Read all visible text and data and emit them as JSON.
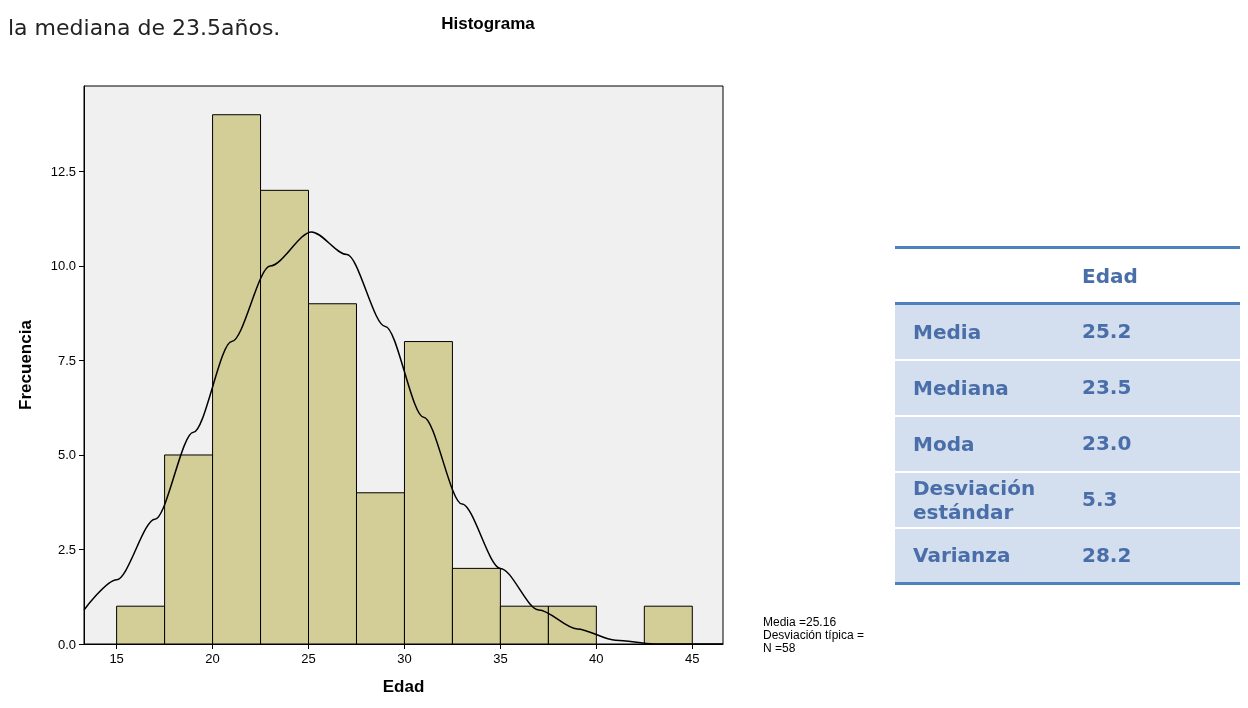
{
  "chart_data": [
    {
      "type": "histogram",
      "title": "Histograma",
      "xlabel": "Edad",
      "ylabel": "Frecuencia",
      "bins": [
        15,
        17.5,
        20,
        22.5,
        25,
        27.5,
        30,
        32.5,
        35,
        37.5,
        40,
        42.5,
        45
      ],
      "values": [
        1,
        5,
        14,
        12,
        9,
        4,
        8,
        2,
        1,
        1,
        0,
        1
      ],
      "color": "#d3cd98",
      "series": [
        {
          "type": "line",
          "color": "#000000",
          "x": [
            13.3,
            15,
            17,
            19,
            21,
            23,
            25.16,
            27,
            29,
            31,
            33,
            35,
            37,
            39,
            41,
            43,
            45,
            46.6
          ],
          "values": [
            0.9,
            1.7,
            3.3,
            5.6,
            8.0,
            10.0,
            10.9,
            10.3,
            8.4,
            6.0,
            3.7,
            2.0,
            0.9,
            0.4,
            0.1,
            0.0,
            0.0,
            0.0
          ]
        }
      ],
      "xlim": [
        13.3,
        46.6
      ],
      "xticks": [
        15,
        20,
        25,
        30,
        35,
        40,
        45
      ],
      "ylim": [
        0,
        14.76
      ],
      "yticks": [
        {
          "value": 0,
          "label": "0.0"
        },
        {
          "value": 2.5,
          "label": "2.5"
        },
        {
          "value": 5,
          "label": "5.0"
        },
        {
          "value": 7.5,
          "label": "7.5"
        },
        {
          "value": 10,
          "label": "10.0"
        },
        {
          "value": 12.5,
          "label": "12.5"
        }
      ],
      "grid": false,
      "annotations": [
        "la mediana de 23.5años.",
        "Media =25.16",
        "Desviación típica =",
        "N =58"
      ]
    },
    {
      "type": "other",
      "xlabel": "Edad",
      "categories": [
        "Media",
        "Mediana",
        "Moda",
        "Desviación estándar",
        "Varianza"
      ],
      "value_labels": [
        "25.2",
        "23.5",
        "23.0",
        "5.3",
        "28.2"
      ]
    }
  ]
}
